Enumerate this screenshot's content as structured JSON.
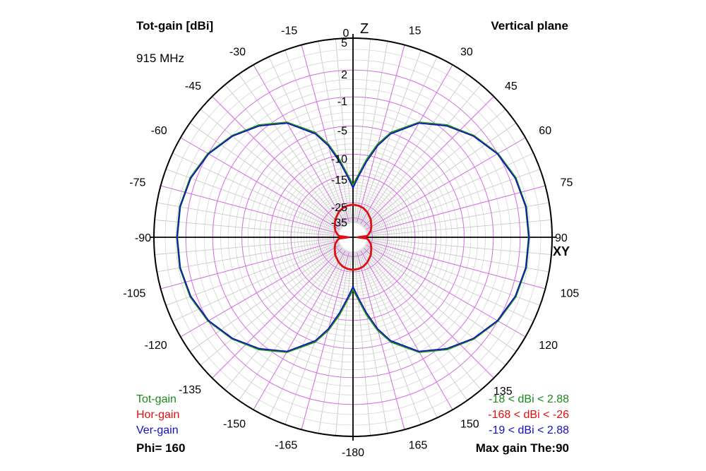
{
  "chart_data": {
    "type": "polar",
    "title": "Tot-gain [dBi]",
    "plane": "Vertical plane",
    "frequency": "915 MHz",
    "axis_labels": {
      "top": "Z",
      "right": "XY"
    },
    "angle_labels": [
      "0",
      "15",
      "30",
      "45",
      "60",
      "75",
      "90",
      "105",
      "120",
      "135",
      "150",
      "165",
      "-180",
      "-165",
      "-150",
      "-135",
      "-120",
      "-105",
      "-90",
      "-75",
      "-60",
      "-45",
      "-30",
      "-15"
    ],
    "radial_tick_labels": [
      "5",
      "2",
      "-1",
      "-5",
      "-10",
      "-15",
      "-25",
      "-35"
    ],
    "radial_tick_values": [
      5,
      2,
      -1,
      -5,
      -10,
      -15,
      -25,
      -35
    ],
    "legend": [
      {
        "name": "Tot-gain",
        "color": "#1a8a1a",
        "range_text": "-18 < dBi < 2.88"
      },
      {
        "name": "Hor-gain",
        "color": "#e01010",
        "range_text": "-168 < dBi < -26"
      },
      {
        "name": "Ver-gain",
        "color": "#1010c8",
        "range_text": "-19 < dBi < 2.88"
      }
    ],
    "phi_text": "Phi= 160",
    "max_gain_text": "Max gain The:90",
    "series": [
      {
        "name": "Tot-gain",
        "color": "#1a8a1a",
        "theta_deg": [
          0,
          5,
          10,
          15,
          20,
          30,
          40,
          50,
          60,
          70,
          80,
          90,
          100,
          110,
          120,
          130,
          140,
          150,
          160,
          165,
          170,
          175,
          180
        ],
        "gain_dbi": [
          -18,
          -15,
          -11,
          -7.5,
          -5,
          -2,
          -0.3,
          1,
          2,
          2.6,
          2.85,
          2.88,
          2.85,
          2.6,
          2,
          1,
          -0.3,
          -2,
          -5,
          -7.5,
          -11,
          -15,
          -18
        ]
      },
      {
        "name": "Ver-gain",
        "color": "#1010c8",
        "theta_deg": [
          0,
          5,
          10,
          15,
          20,
          30,
          40,
          50,
          60,
          70,
          80,
          90,
          100,
          110,
          120,
          130,
          140,
          150,
          160,
          165,
          170,
          175,
          180
        ],
        "gain_dbi": [
          -19,
          -15.5,
          -11.5,
          -7.8,
          -5.2,
          -2.1,
          -0.4,
          0.95,
          1.95,
          2.55,
          2.84,
          2.88,
          2.84,
          2.55,
          1.95,
          0.95,
          -0.4,
          -2.1,
          -5.2,
          -7.8,
          -11.5,
          -15.5,
          -19
        ]
      },
      {
        "name": "Hor-gain",
        "color": "#e01010",
        "theta_deg": [
          0,
          10,
          20,
          30,
          45,
          60,
          70,
          80,
          85,
          90,
          95,
          100,
          110,
          120,
          135,
          150,
          160,
          170,
          180
        ],
        "gain_dbi": [
          -26,
          -26.3,
          -27,
          -28.2,
          -30.5,
          -33.5,
          -35.5,
          -38.5,
          -41,
          -60,
          -41,
          -38.5,
          -35.5,
          -33.5,
          -30.5,
          -28.2,
          -27,
          -26.3,
          -26
        ]
      }
    ]
  }
}
